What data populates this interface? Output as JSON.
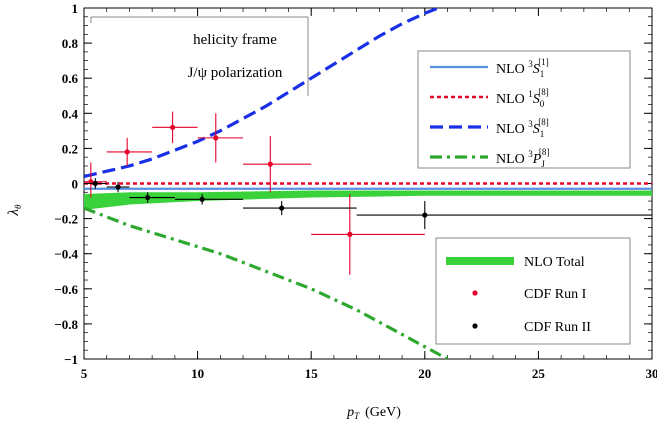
{
  "chart_data": {
    "type": "line",
    "xlabel": "p",
    "xlabel_sub": "T",
    "xlabel_unit": "(GeV)",
    "ylabel": "λ",
    "ylabel_sub": "θ",
    "xlim": [
      5,
      30
    ],
    "ylim": [
      -1,
      1
    ],
    "xticks": [
      5,
      10,
      15,
      20,
      25,
      30
    ],
    "yticks": [
      1,
      0.8,
      0.6,
      0.4,
      0.2,
      0,
      -0.2,
      -0.4,
      -0.6,
      -0.8,
      -1
    ],
    "ytick_labels": [
      "1",
      "0.8",
      "0.6",
      "0.4",
      "0.2",
      "0",
      "−0.2",
      "−0.4",
      "−0.6",
      "−0.8",
      "−1"
    ],
    "annotations": {
      "line1": "helicity frame",
      "line2": "J/ψ polarization"
    },
    "series": [
      {
        "name": "NLO ³S₁^[1]",
        "label_main": "NLO ",
        "label_super": "3",
        "label_letter": "S",
        "label_sub": "1",
        "label_bracket": "[1]",
        "color": "#5a8fe0",
        "style": "solid",
        "x": [
          5,
          10,
          15,
          20,
          25,
          30
        ],
        "y": [
          -0.03,
          -0.03,
          -0.03,
          -0.03,
          -0.03,
          -0.03
        ]
      },
      {
        "name": "NLO ¹S₀^[8]",
        "label_main": "NLO ",
        "label_super": "1",
        "label_letter": "S",
        "label_sub": "0",
        "label_bracket": "[8]",
        "color": "#e8002a",
        "style": "dotted",
        "x": [
          5,
          10,
          15,
          20,
          25,
          30
        ],
        "y": [
          0,
          0,
          0,
          0,
          0,
          0
        ]
      },
      {
        "name": "NLO ³S₁^[8]",
        "label_main": "NLO ",
        "label_super": "3",
        "label_letter": "S",
        "label_sub": "1",
        "label_bracket": "[8]",
        "color": "#1a2fe8",
        "style": "dashed",
        "x": [
          5,
          6,
          7,
          8,
          9,
          10,
          11,
          12,
          13,
          14,
          15,
          16,
          17,
          18,
          19,
          20,
          21
        ],
        "y": [
          0.04,
          0.07,
          0.1,
          0.14,
          0.19,
          0.24,
          0.3,
          0.37,
          0.44,
          0.52,
          0.6,
          0.68,
          0.76,
          0.84,
          0.91,
          0.97,
          1.02
        ]
      },
      {
        "name": "NLO ³P_J^[8]",
        "label_main": "NLO ",
        "label_super": "3",
        "label_letter": "P",
        "label_sub": "J",
        "label_bracket": "[8]",
        "color": "#2ea82e",
        "style": "dashdot",
        "x": [
          5,
          6,
          7,
          8,
          9,
          10,
          11,
          12,
          13,
          14,
          15,
          16,
          17,
          18,
          19,
          20,
          21
        ],
        "y": [
          -0.14,
          -0.19,
          -0.24,
          -0.28,
          -0.32,
          -0.36,
          -0.4,
          -0.45,
          -0.5,
          -0.55,
          -0.6,
          -0.66,
          -0.72,
          -0.79,
          -0.86,
          -0.93,
          -1.0
        ]
      }
    ],
    "band": {
      "name": "NLO Total",
      "color": "#3ad23a",
      "x": [
        5,
        7,
        10,
        15,
        20,
        25,
        30
      ],
      "upper": [
        -0.06,
        -0.05,
        -0.05,
        -0.04,
        -0.04,
        -0.04,
        -0.04
      ],
      "lower": [
        -0.15,
        -0.12,
        -0.1,
        -0.08,
        -0.07,
        -0.07,
        -0.07
      ]
    },
    "data_sets": [
      {
        "name": "CDF Run I",
        "color": "#e8002a",
        "points": [
          {
            "x": 5.3,
            "y": 0.01,
            "xlo": 5.0,
            "xhi": 6.0,
            "ylo": -0.08,
            "yhi": 0.12
          },
          {
            "x": 6.9,
            "y": 0.18,
            "xlo": 6.0,
            "xhi": 8.0,
            "ylo": 0.1,
            "yhi": 0.26
          },
          {
            "x": 8.9,
            "y": 0.32,
            "xlo": 8.0,
            "xhi": 10.0,
            "ylo": 0.23,
            "yhi": 0.41
          },
          {
            "x": 10.8,
            "y": 0.26,
            "xlo": 10.0,
            "xhi": 12.0,
            "ylo": 0.12,
            "yhi": 0.4
          },
          {
            "x": 13.2,
            "y": 0.11,
            "xlo": 12.0,
            "xhi": 15.0,
            "ylo": -0.05,
            "yhi": 0.27
          },
          {
            "x": 16.7,
            "y": -0.29,
            "xlo": 15.0,
            "xhi": 20.0,
            "ylo": -0.52,
            "yhi": -0.06
          }
        ]
      },
      {
        "name": "CDF Run II",
        "color": "#000000",
        "points": [
          {
            "x": 5.5,
            "y": 0.0,
            "xlo": 5.0,
            "xhi": 6.0,
            "ylo": -0.03,
            "yhi": 0.03
          },
          {
            "x": 6.5,
            "y": -0.02,
            "xlo": 6.0,
            "xhi": 7.0,
            "ylo": -0.05,
            "yhi": 0.01
          },
          {
            "x": 7.8,
            "y": -0.08,
            "xlo": 7.0,
            "xhi": 9.0,
            "ylo": -0.11,
            "yhi": -0.05
          },
          {
            "x": 10.2,
            "y": -0.09,
            "xlo": 9.0,
            "xhi": 12.0,
            "ylo": -0.12,
            "yhi": -0.06
          },
          {
            "x": 13.7,
            "y": -0.14,
            "xlo": 12.0,
            "xhi": 17.0,
            "ylo": -0.18,
            "yhi": -0.1
          },
          {
            "x": 20.0,
            "y": -0.18,
            "xlo": 17.0,
            "xhi": 30.0,
            "ylo": -0.26,
            "yhi": -0.1
          }
        ]
      }
    ]
  }
}
